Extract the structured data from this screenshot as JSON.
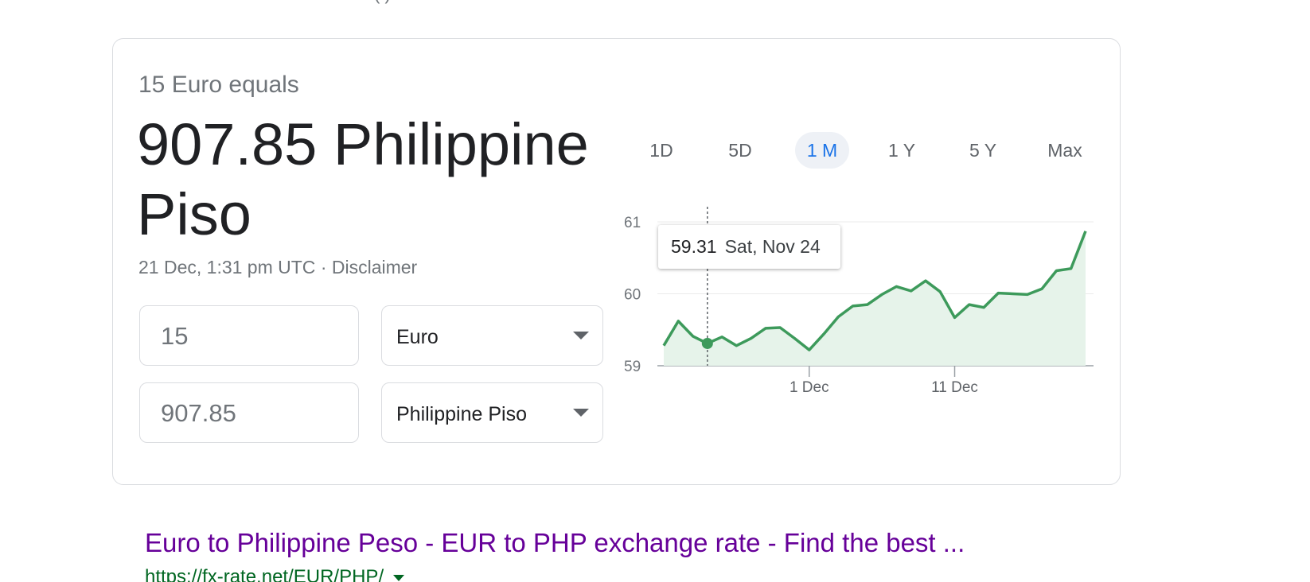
{
  "converter": {
    "equals_label": "15 Euro equals",
    "result_value": "907.85 Philippine Piso",
    "timestamp": "21 Dec, 1:31 pm UTC",
    "separator": "·",
    "disclaimer": "Disclaimer",
    "from_amount": "15",
    "from_currency": "Euro",
    "to_amount": "907.85",
    "to_currency": "Philippine Piso"
  },
  "range_tabs": [
    {
      "label": "1D",
      "active": false
    },
    {
      "label": "5D",
      "active": false
    },
    {
      "label": "1 M",
      "active": true
    },
    {
      "label": "1 Y",
      "active": false
    },
    {
      "label": "5 Y",
      "active": false
    },
    {
      "label": "Max",
      "active": false
    }
  ],
  "tooltip": {
    "value": "59.31",
    "date": "Sat, Nov 24"
  },
  "colors": {
    "line": "#3d9a5b",
    "fill": "#e6f3ea",
    "active_tab": "#1a73e8",
    "link": "#660099",
    "url": "#006621"
  },
  "search_result": {
    "title": "Euro to Philippine Peso - EUR to PHP exchange rate - Find the best ...",
    "url": "https://fx-rate.net/EUR/PHP/"
  },
  "chart_data": {
    "type": "area",
    "x_ticks": [
      {
        "label": "1 Dec",
        "index": 10
      },
      {
        "label": "11 Dec",
        "index": 20
      }
    ],
    "y_ticks": [
      59,
      60,
      61
    ],
    "ylim": [
      59,
      61
    ],
    "highlight_index": 3,
    "values": [
      59.28,
      59.62,
      59.41,
      59.31,
      59.4,
      59.28,
      59.38,
      59.52,
      59.53,
      59.38,
      59.22,
      59.44,
      59.68,
      59.83,
      59.85,
      59.99,
      60.1,
      60.04,
      60.18,
      60.03,
      59.67,
      59.85,
      59.81,
      60.01,
      60.0,
      59.99,
      60.07,
      60.32,
      60.35,
      60.87
    ]
  }
}
